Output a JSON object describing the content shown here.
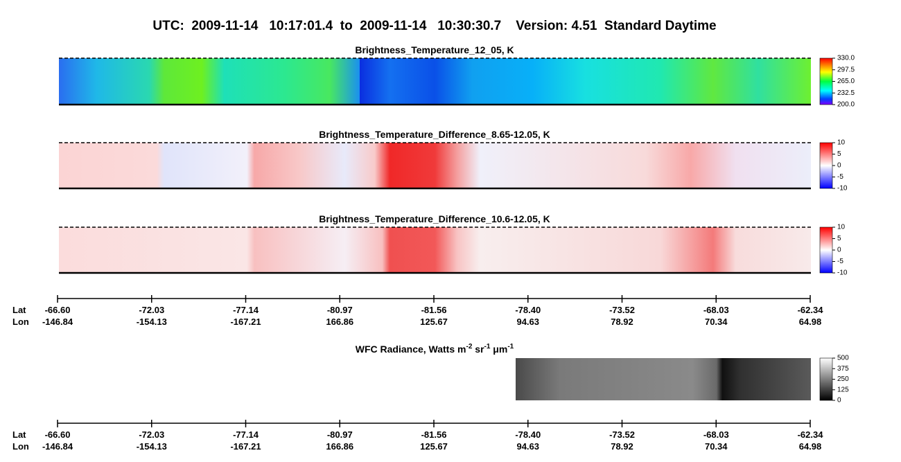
{
  "title": "UTC:  2009-11-14   10:17:01.4  to  2009-11-14   10:30:30.7    Version: 4.51  Standard Daytime",
  "panels": [
    {
      "title": "Brightness_Temperature_12_05, K",
      "colorbar": {
        "lim": [
          200,
          330
        ],
        "ticks": [
          {
            "value": 330,
            "label": "330.0"
          },
          {
            "value": 297.5,
            "label": "297.5"
          },
          {
            "value": 265,
            "label": "265.0"
          },
          {
            "value": 232.5,
            "label": "232.5"
          },
          {
            "value": 200,
            "label": "200.0"
          }
        ]
      }
    },
    {
      "title": "Brightness_Temperature_Difference_8.65-12.05, K",
      "colorbar": {
        "lim": [
          -10,
          10
        ],
        "ticks": [
          10,
          5,
          0,
          -5,
          -10
        ]
      }
    },
    {
      "title": "Brightness_Temperature_Difference_10.6-12.05, K",
      "colorbar": {
        "lim": [
          -10,
          10
        ],
        "ticks": [
          10,
          5,
          0,
          -5,
          -10
        ]
      }
    },
    {
      "title_parts": [
        "WFC Radiance, Watts m",
        "-2",
        " sr",
        "-1",
        " μm",
        "-1"
      ],
      "colorbar": {
        "lim": [
          0,
          500
        ],
        "ticks": [
          500,
          375,
          250,
          125,
          0
        ]
      }
    }
  ],
  "axes": [
    {
      "lat_label": "Lat",
      "lon_label": "Lon",
      "ticks": [
        {
          "lat": "-66.60",
          "lon": "-146.84"
        },
        {
          "lat": "-72.03",
          "lon": "-154.13"
        },
        {
          "lat": "-77.14",
          "lon": "-167.21"
        },
        {
          "lat": "-80.97",
          "lon": "166.86"
        },
        {
          "lat": "-81.56",
          "lon": "125.67"
        },
        {
          "lat": "-78.40",
          "lon": "94.63"
        },
        {
          "lat": "-73.52",
          "lon": "78.92"
        },
        {
          "lat": "-68.03",
          "lon": "70.34"
        },
        {
          "lat": "-62.34",
          "lon": "64.98"
        }
      ]
    },
    {
      "lat_label": "Lat",
      "lon_label": "Lon",
      "ticks": [
        {
          "lat": "-66.60",
          "lon": "-146.84"
        },
        {
          "lat": "-72.03",
          "lon": "-154.13"
        },
        {
          "lat": "-77.14",
          "lon": "-167.21"
        },
        {
          "lat": "-80.97",
          "lon": "166.86"
        },
        {
          "lat": "-81.56",
          "lon": "125.67"
        },
        {
          "lat": "-78.40",
          "lon": "94.63"
        },
        {
          "lat": "-73.52",
          "lon": "78.92"
        },
        {
          "lat": "-68.03",
          "lon": "70.34"
        },
        {
          "lat": "-62.34",
          "lon": "64.98"
        }
      ]
    }
  ]
}
